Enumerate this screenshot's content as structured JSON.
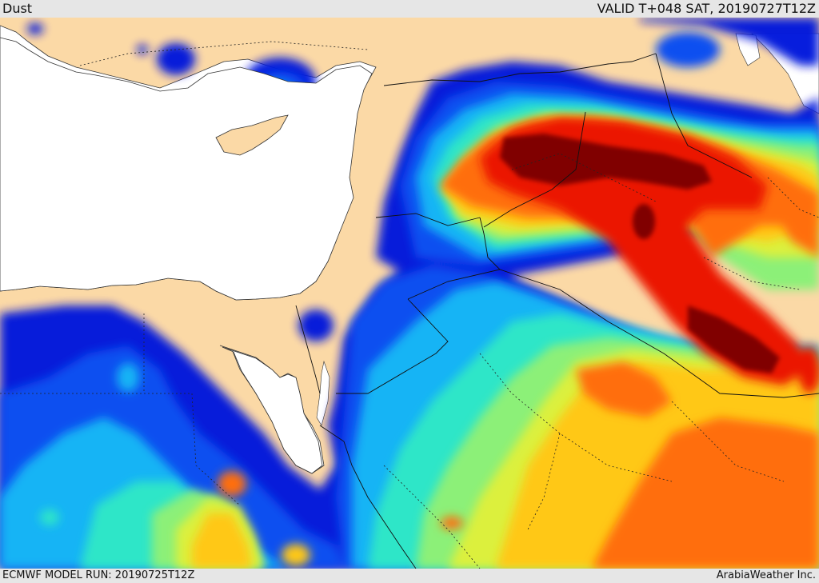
{
  "header": {
    "product_label": "Dust",
    "valid_label": "VALID T+048 SAT, 20190727T12Z"
  },
  "footer": {
    "model_run_label": "ECMWF MODEL RUN: 20190725T12Z",
    "credit_label": "ArabiaWeather Inc."
  },
  "map": {
    "field": "dust concentration",
    "palette": {
      "land": "#fbd9a6",
      "sea": "#ffffff",
      "level_1": "#0014dc",
      "level_2": "#0a50f0",
      "level_3": "#14b4f5",
      "level_4": "#2de6c8",
      "level_5": "#8cf078",
      "level_6": "#dcf03c",
      "level_7": "#ffc814",
      "level_8": "#ff6e0a",
      "level_9": "#eb1405",
      "level_10": "#800000"
    }
  }
}
